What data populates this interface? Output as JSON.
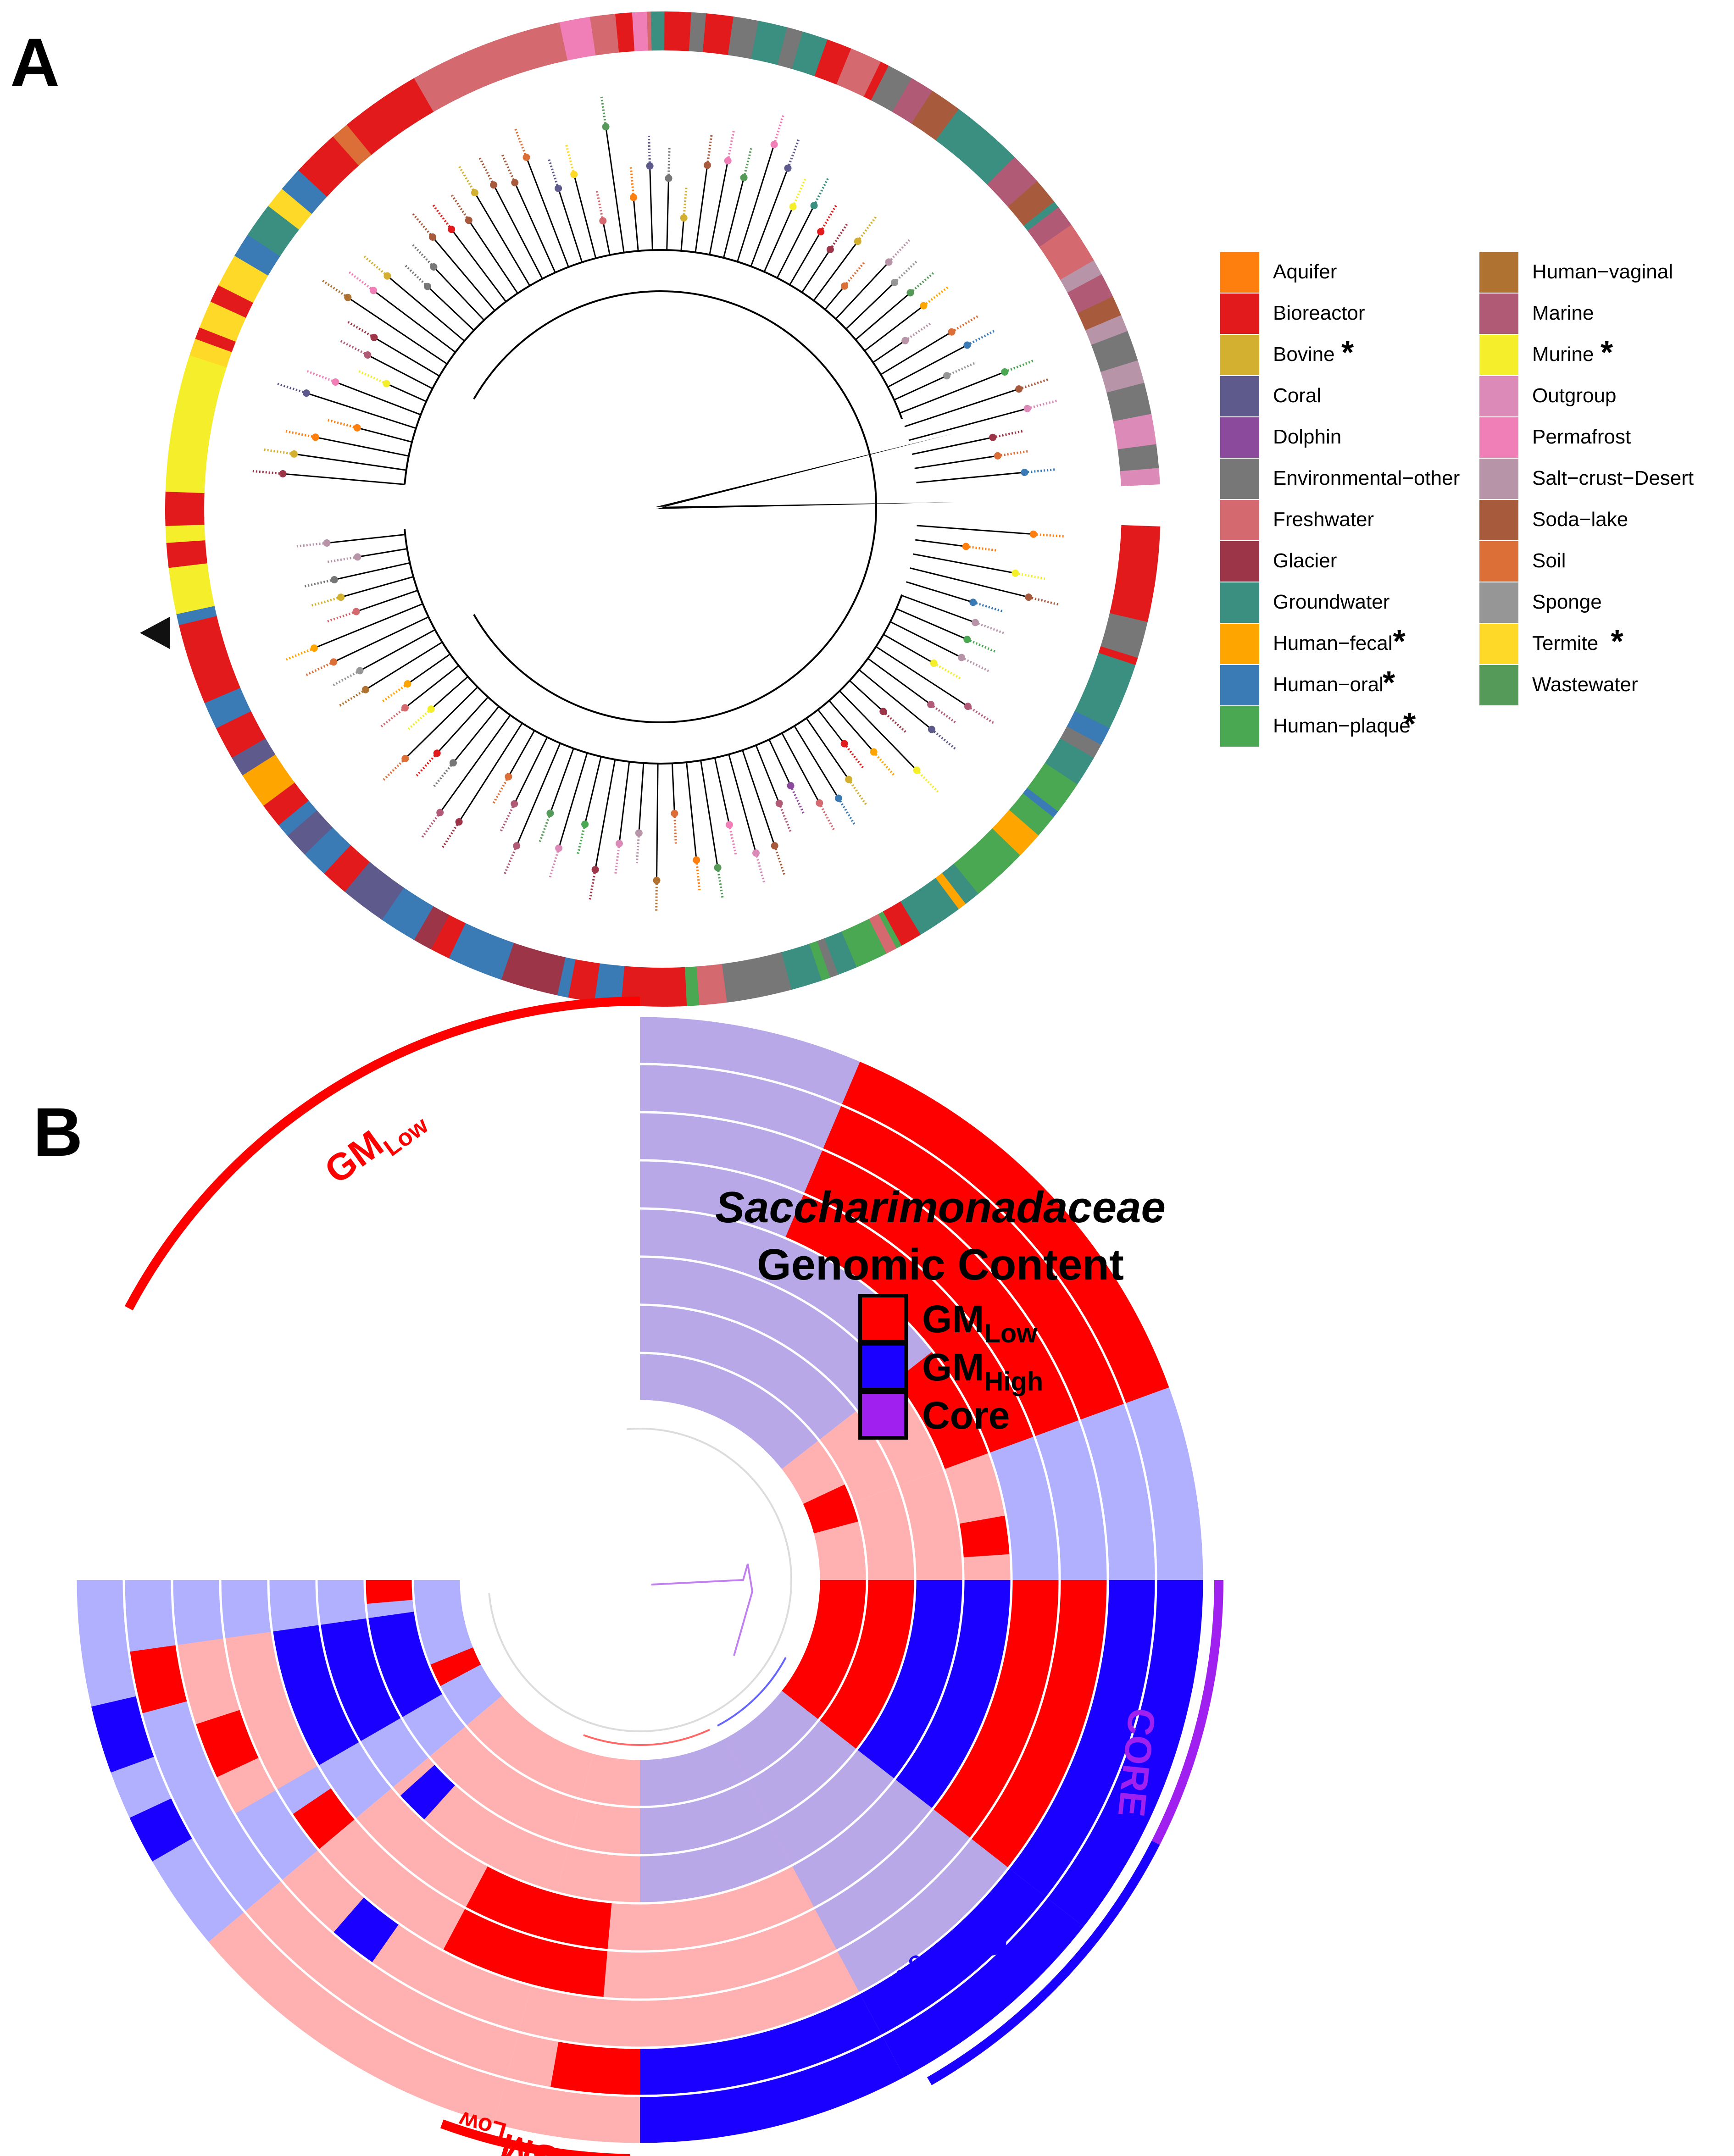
{
  "panel_a": {
    "letter": "A",
    "legend": [
      {
        "label": "Aquifer",
        "color": "#ff7f0e",
        "star": ""
      },
      {
        "label": "Bioreactor",
        "color": "#e31a1c",
        "star": ""
      },
      {
        "label": "Bovine",
        "color": "#d4b030",
        "star": "*"
      },
      {
        "label": "Coral",
        "color": "#5e5a8c",
        "star": ""
      },
      {
        "label": "Dolphin",
        "color": "#8c4a9c",
        "star": ""
      },
      {
        "label": "Environmental−other",
        "color": "#777777",
        "star": ""
      },
      {
        "label": "Freshwater",
        "color": "#d4696f",
        "star": ""
      },
      {
        "label": "Glacier",
        "color": "#9c3548",
        "star": ""
      },
      {
        "label": "Groundwater",
        "color": "#3a8f80",
        "star": ""
      },
      {
        "label": "Human−fecal",
        "color": "#ffa500",
        "star": "*"
      },
      {
        "label": "Human−oral",
        "color": "#3a7ab5",
        "star": "*"
      },
      {
        "label": "Human−plaque",
        "color": "#4aa852",
        "star": "*"
      },
      {
        "label": "Human−vaginal",
        "color": "#b07230",
        "star": ""
      },
      {
        "label": "Marine",
        "color": "#b05a75",
        "star": ""
      },
      {
        "label": "Murine",
        "color": "#f5ee2a",
        "star": "*"
      },
      {
        "label": "Outgroup",
        "color": "#dc8ab8",
        "star": ""
      },
      {
        "label": "Permafrost",
        "color": "#f07fb8",
        "star": ""
      },
      {
        "label": "Salt−crust−Desert",
        "color": "#b894a8",
        "star": ""
      },
      {
        "label": "Soda−lake",
        "color": "#a85a3c",
        "star": ""
      },
      {
        "label": "Soil",
        "color": "#dc6e38",
        "star": ""
      },
      {
        "label": "Sponge",
        "color": "#969696",
        "star": ""
      },
      {
        "label": "Termite",
        "color": "#ffd928",
        "star": "*"
      },
      {
        "label": "Wastewater",
        "color": "#559a58",
        "star": ""
      }
    ]
  },
  "panel_b": {
    "letter": "B",
    "title_line1": "Saccharimonadaceae",
    "title_line2": "Genomic Content",
    "key": [
      {
        "main": "GM",
        "sub": "Low",
        "color": "#ff0000"
      },
      {
        "main": "GM",
        "sub": "High",
        "color": "#1a00ff"
      },
      {
        "main": "Core",
        "sub": "",
        "color": "#a020f0"
      }
    ],
    "arc_labels": {
      "gm_low_top": {
        "main": "GM",
        "sub": "Low"
      },
      "gm_low_bottom": {
        "main": "GM",
        "sub": "Low"
      },
      "gm_high": {
        "main": "GM",
        "sub": "High"
      },
      "core": "CORE"
    },
    "colors": {
      "low": "#ff0000",
      "high": "#1a00ff",
      "core": "#a020f0"
    }
  }
}
